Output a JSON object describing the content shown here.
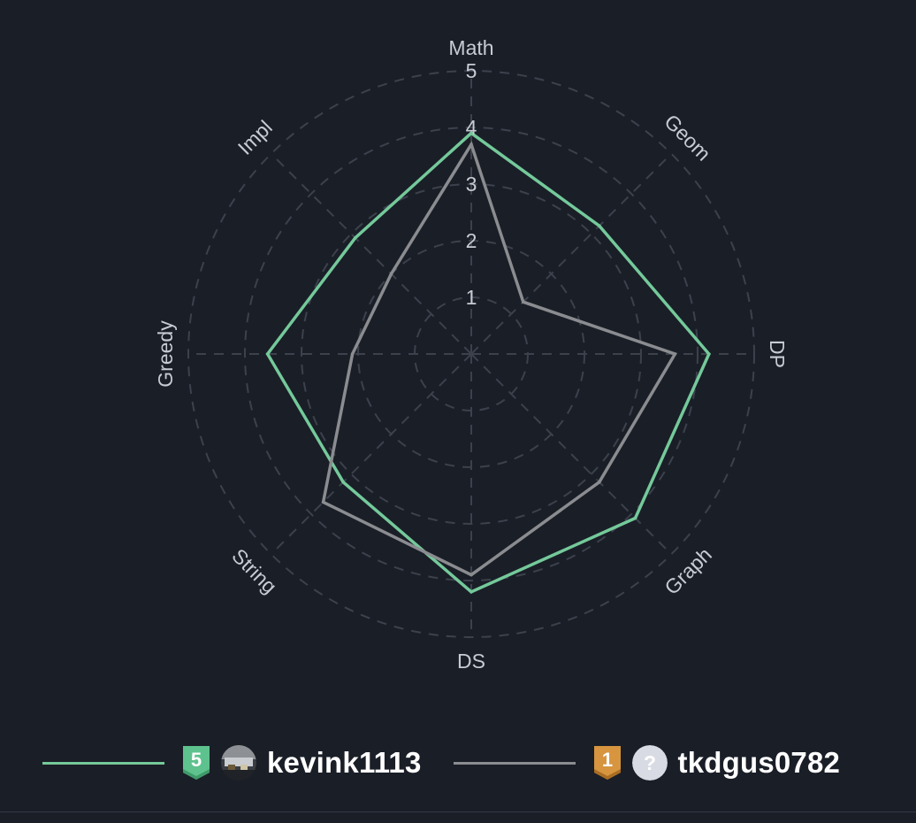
{
  "chart_data": {
    "type": "radar",
    "axes": [
      "Math",
      "Geom",
      "DP",
      "Graph",
      "DS",
      "String",
      "Greedy",
      "Impl"
    ],
    "rlim": [
      0,
      5
    ],
    "ticks": [
      "1",
      "2",
      "3",
      "4",
      "5"
    ],
    "grid": "dashed-circles",
    "legend_position": "bottom",
    "series": [
      {
        "name": "kevink1113",
        "color": "#74c99a",
        "values": [
          3.9,
          3.2,
          4.2,
          4.1,
          4.2,
          3.2,
          3.6,
          2.9
        ]
      },
      {
        "name": "tkdgus0782",
        "color": "#8a8c90",
        "values": [
          3.7,
          1.3,
          3.6,
          3.2,
          3.9,
          3.7,
          2.1,
          2.0
        ]
      }
    ]
  },
  "legend": {
    "entries": [
      {
        "username": "kevink1113",
        "tier_number": "5",
        "tier_color": "#5ec28e",
        "tier_icon": "tier-shield-icon",
        "avatar_icon": "user-avatar-photo-icon"
      },
      {
        "username": "tkdgus0782",
        "tier_number": "1",
        "tier_color": "#d6953e",
        "tier_icon": "tier-shield-icon",
        "avatar_icon": "unknown-user-avatar-icon",
        "avatar_glyph": "?"
      }
    ]
  },
  "colors": {
    "background": "#1a1e27",
    "grid": "#3c414c",
    "text": "#c7cbd3"
  }
}
